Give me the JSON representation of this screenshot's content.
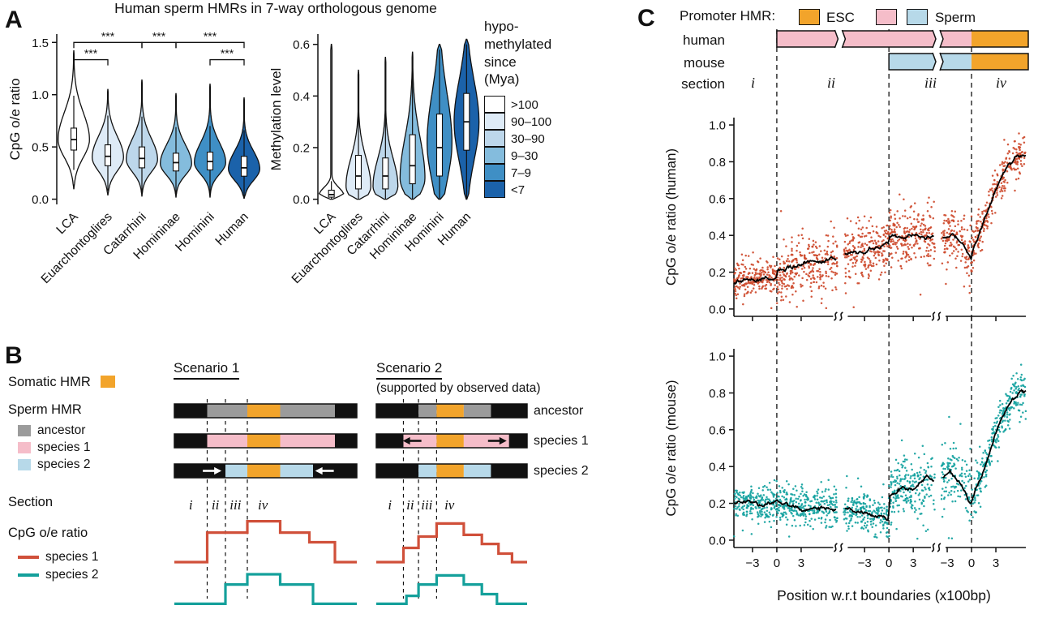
{
  "colors": {
    "orange": "#F2A42B",
    "pink": "#F5BDC9",
    "blue": "#B7D9E9",
    "gray": "#9B9B9B",
    "red": "#D0503A",
    "teal": "#14A09B",
    "black": "#111111"
  },
  "panelA": {
    "label": "A",
    "title": "Human sperm HMRs in 7-way orthologous genome",
    "categories": [
      "LCA",
      "Euarchontoglires",
      "Catarrhini",
      "Homininae",
      "Hominini",
      "Human"
    ],
    "violin_fills": [
      "#FFFFFF",
      "#DEEBF7",
      "#BDD7EB",
      "#84BCDD",
      "#3F8FC5",
      "#1B62AA"
    ],
    "legend": {
      "title": "hypo-\nmethylated\nsince\n(Mya)",
      "entries": [
        {
          "label": ">100",
          "color": "#FFFFFF"
        },
        {
          "label": "90–100",
          "color": "#DEEBF7"
        },
        {
          "label": "30–90",
          "color": "#BDD7EB"
        },
        {
          "label": "9–30",
          "color": "#84BCDD"
        },
        {
          "label": "7–9",
          "color": "#3F8FC5"
        },
        {
          "label": "<7",
          "color": "#1B62AA"
        }
      ]
    }
  },
  "panelB": {
    "label": "B",
    "somatic_label": "Somatic HMR",
    "sperm_label": "Sperm HMR",
    "section_label": "Section",
    "cpg_label": "CpG o/e ratio",
    "row_labels": [
      "ancestor",
      "species 1",
      "species 2"
    ],
    "hmr_legend": [
      {
        "label": "ancestor",
        "key": "gray"
      },
      {
        "label": "species 1",
        "key": "pink"
      },
      {
        "label": "species 2",
        "key": "blue"
      }
    ],
    "line_legend": [
      {
        "label": "species 1",
        "key": "red"
      },
      {
        "label": "species 2",
        "key": "teal"
      }
    ],
    "dashes": [
      0.18,
      0.28,
      0.4
    ],
    "sections": [
      {
        "label": "i",
        "f": 0.09
      },
      {
        "label": "ii",
        "f": 0.225
      },
      {
        "label": "iii",
        "f": 0.335
      },
      {
        "label": "iv",
        "f": 0.485
      }
    ],
    "scenario1": {
      "title": "Scenario 1",
      "bars": [
        {
          "segs": [
            [
              0,
              0.18,
              "black"
            ],
            [
              0.18,
              0.4,
              "gray"
            ],
            [
              0.4,
              0.58,
              "orange"
            ],
            [
              0.58,
              0.88,
              "gray"
            ],
            [
              0.88,
              1,
              "black"
            ]
          ]
        },
        {
          "segs": [
            [
              0,
              0.18,
              "black"
            ],
            [
              0.18,
              0.4,
              "pink"
            ],
            [
              0.4,
              0.58,
              "orange"
            ],
            [
              0.58,
              0.88,
              "pink"
            ],
            [
              0.88,
              1,
              "black"
            ]
          ]
        },
        {
          "segs": [
            [
              0,
              0.28,
              "black"
            ],
            [
              0.28,
              0.4,
              "blue"
            ],
            [
              0.4,
              0.58,
              "orange"
            ],
            [
              0.58,
              0.76,
              "blue"
            ],
            [
              0.76,
              1,
              "black"
            ]
          ],
          "arrows": [
            {
              "f": 0.205,
              "dir": 1,
              "color": "#FFFFFF"
            },
            {
              "f": 0.825,
              "dir": -1,
              "color": "#FFFFFF"
            }
          ]
        }
      ],
      "red_steps": [
        [
          0,
          0.18,
          0.1
        ],
        [
          0.18,
          0.4,
          0.62
        ],
        [
          0.4,
          0.58,
          0.82
        ],
        [
          0.58,
          0.74,
          0.62
        ],
        [
          0.74,
          0.88,
          0.45
        ],
        [
          0.88,
          1,
          0.1
        ]
      ],
      "teal_steps": [
        [
          0,
          0.28,
          0.08
        ],
        [
          0.28,
          0.4,
          0.42
        ],
        [
          0.4,
          0.58,
          0.6
        ],
        [
          0.58,
          0.76,
          0.42
        ],
        [
          0.76,
          1,
          0.08
        ]
      ]
    },
    "scenario2": {
      "title": "Scenario 2",
      "subtitle": "(supported by observed data)",
      "bars": [
        {
          "segs": [
            [
              0,
              0.28,
              "black"
            ],
            [
              0.28,
              0.4,
              "gray"
            ],
            [
              0.4,
              0.58,
              "orange"
            ],
            [
              0.58,
              0.76,
              "gray"
            ],
            [
              0.76,
              1,
              "black"
            ]
          ]
        },
        {
          "segs": [
            [
              0,
              0.18,
              "black"
            ],
            [
              0.18,
              0.4,
              "pink"
            ],
            [
              0.4,
              0.58,
              "orange"
            ],
            [
              0.58,
              0.88,
              "pink"
            ],
            [
              0.88,
              1,
              "black"
            ]
          ],
          "arrows": [
            {
              "f": 0.24,
              "dir": -1,
              "color": "#111111"
            },
            {
              "f": 0.8,
              "dir": 1,
              "color": "#111111"
            }
          ]
        },
        {
          "segs": [
            [
              0,
              0.28,
              "black"
            ],
            [
              0.28,
              0.4,
              "blue"
            ],
            [
              0.4,
              0.58,
              "orange"
            ],
            [
              0.58,
              0.76,
              "blue"
            ],
            [
              0.76,
              1,
              "black"
            ]
          ]
        }
      ],
      "red_steps": [
        [
          0,
          0.18,
          0.1
        ],
        [
          0.18,
          0.28,
          0.35
        ],
        [
          0.28,
          0.4,
          0.55
        ],
        [
          0.4,
          0.58,
          0.78
        ],
        [
          0.58,
          0.7,
          0.58
        ],
        [
          0.7,
          0.81,
          0.42
        ],
        [
          0.81,
          0.9,
          0.25
        ],
        [
          0.9,
          1,
          0.1
        ]
      ],
      "teal_steps": [
        [
          0,
          0.2,
          0.08
        ],
        [
          0.2,
          0.28,
          0.22
        ],
        [
          0.28,
          0.4,
          0.42
        ],
        [
          0.4,
          0.58,
          0.58
        ],
        [
          0.58,
          0.7,
          0.42
        ],
        [
          0.7,
          0.8,
          0.25
        ],
        [
          0.8,
          1,
          0.08
        ]
      ]
    }
  },
  "panelC": {
    "label": "C",
    "legend": {
      "title": "Promoter HMR:",
      "esc": "ESC",
      "sperm": "Sperm"
    },
    "row_labels": [
      "human",
      "mouse",
      "section"
    ],
    "sections": [
      "i",
      "ii",
      "iii",
      "iv"
    ],
    "xlabel": "Position w.r.t boundaries (x100bp)"
  },
  "chart_data": [
    {
      "id": "violin-cpg",
      "type": "violin",
      "title": "Human sperm HMRs in 7-way orthologous genome",
      "ylabel": "CpG o/e ratio",
      "ylim": [
        -0.05,
        1.58
      ],
      "yticks": [
        0,
        0.5,
        1.0,
        1.5
      ],
      "categories": [
        "LCA",
        "Euarchontoglires",
        "Catarrhini",
        "Homininae",
        "Hominini",
        "Human"
      ],
      "violins": [
        {
          "min": 0.1,
          "max": 1.42,
          "mode": 0.57,
          "bwL": 0.17,
          "bwH": 0.26,
          "tail": 0.02,
          "q1": 0.47,
          "med": 0.57,
          "q3": 0.68,
          "wlo": 0.28,
          "whi": 0.99
        },
        {
          "min": 0.04,
          "max": 1.05,
          "mode": 0.4,
          "bwL": 0.13,
          "bwH": 0.2,
          "tail": 0.02,
          "q1": 0.32,
          "med": 0.41,
          "q3": 0.52,
          "wlo": 0.08,
          "whi": 0.8
        },
        {
          "min": 0.03,
          "max": 1.14,
          "mode": 0.38,
          "bwL": 0.12,
          "bwH": 0.2,
          "tail": 0.02,
          "q1": 0.3,
          "med": 0.39,
          "q3": 0.5,
          "wlo": 0.05,
          "whi": 0.79
        },
        {
          "min": 0.02,
          "max": 1.01,
          "mode": 0.34,
          "bwL": 0.11,
          "bwH": 0.18,
          "tail": 0.02,
          "q1": 0.27,
          "med": 0.35,
          "q3": 0.44,
          "wlo": 0.04,
          "whi": 0.69
        },
        {
          "min": 0.02,
          "max": 1.1,
          "mode": 0.35,
          "bwL": 0.11,
          "bwH": 0.19,
          "tail": 0.02,
          "q1": 0.28,
          "med": 0.36,
          "q3": 0.45,
          "wlo": 0.04,
          "whi": 0.7
        },
        {
          "min": 0.01,
          "max": 0.97,
          "mode": 0.29,
          "bwL": 0.11,
          "bwH": 0.17,
          "tail": 0.02,
          "q1": 0.22,
          "med": 0.3,
          "q3": 0.41,
          "wlo": 0.02,
          "whi": 0.66
        }
      ],
      "brackets": [
        {
          "a": 0,
          "b": 2,
          "y": 1.5,
          "label": "***"
        },
        {
          "a": 0,
          "b": 1,
          "y": 1.335,
          "label": "***"
        },
        {
          "a": 2,
          "b": 3,
          "y": 1.5,
          "label": "***"
        },
        {
          "a": 3,
          "b": 5,
          "y": 1.5,
          "label": "***"
        },
        {
          "a": 4,
          "b": 5,
          "y": 1.335,
          "label": "***"
        }
      ]
    },
    {
      "id": "violin-meth",
      "type": "violin",
      "ylabel": "Methylation level",
      "ylim": [
        -0.02,
        0.64
      ],
      "yticks": [
        0,
        0.2,
        0.4,
        0.6
      ],
      "categories": [
        "LCA",
        "Euarchontoglires",
        "Catarrhini",
        "Homininae",
        "Hominini",
        "Human"
      ],
      "violins": [
        {
          "min": 0,
          "max": 0.6,
          "mode": 0.015,
          "bwL": 0.012,
          "bwH": 0.03,
          "tail": 0.05,
          "q1": 0.008,
          "med": 0.018,
          "q3": 0.035,
          "wlo": 0.0,
          "whi": 0.07
        },
        {
          "min": 0,
          "max": 0.5,
          "mode": 0.05,
          "bwL": 0.045,
          "bwH": 0.11,
          "tail": 0.03,
          "q1": 0.04,
          "med": 0.09,
          "q3": 0.17,
          "wlo": 0.0,
          "whi": 0.36
        },
        {
          "min": 0,
          "max": 0.55,
          "mode": 0.05,
          "bwL": 0.045,
          "bwH": 0.11,
          "tail": 0.03,
          "q1": 0.04,
          "med": 0.09,
          "q3": 0.16,
          "wlo": 0.0,
          "whi": 0.34
        },
        {
          "min": 0,
          "max": 0.57,
          "mode": 0.08,
          "bwL": 0.06,
          "bwH": 0.16,
          "tail": 0.03,
          "q1": 0.06,
          "med": 0.13,
          "q3": 0.25,
          "wlo": 0.0,
          "whi": 0.52
        },
        {
          "min": 0,
          "max": 0.6,
          "mode": 0.22,
          "bwL": 0.15,
          "bwH": 0.19,
          "tail": 0.04,
          "q1": 0.09,
          "med": 0.2,
          "q3": 0.33,
          "wlo": 0.0,
          "whi": 0.58
        },
        {
          "min": 0,
          "max": 0.62,
          "mode": 0.3,
          "bwL": 0.15,
          "bwH": 0.16,
          "tail": 0.04,
          "q1": 0.19,
          "med": 0.3,
          "q3": 0.41,
          "wlo": 0.0,
          "whi": 0.6
        }
      ]
    },
    {
      "id": "scatter-human",
      "type": "scatter",
      "ylabel": "CpG o/e ratio (human)",
      "color": "#CE4B2E",
      "ylim": [
        0,
        1
      ],
      "yticks": [
        0,
        0.2,
        0.4,
        0.6,
        0.8,
        1.0
      ],
      "boundaries": [
        0.147,
        0.531,
        0.814
      ],
      "breaks": [
        0.365,
        0.7
      ],
      "xticks": [
        "−3",
        "0",
        "3"
      ],
      "xlabel": "Position w.r.t boundaries (x100bp)",
      "n": 1400,
      "seed": 7,
      "noise_sd": [
        [
          0.147,
          0.042
        ],
        [
          0.531,
          0.08
        ],
        [
          0.814,
          0.075
        ],
        [
          1.01,
          0.055
        ]
      ],
      "trend": [
        [
          0,
          0.14
        ],
        [
          0.04,
          0.17
        ],
        [
          0.1,
          0.16
        ],
        [
          0.145,
          0.17
        ],
        [
          0.15,
          0.21
        ],
        [
          0.2,
          0.23
        ],
        [
          0.25,
          0.26
        ],
        [
          0.3,
          0.24
        ],
        [
          0.34,
          0.28
        ],
        [
          0.365,
          0.26
        ],
        [
          0.38,
          0.3
        ],
        [
          0.44,
          0.31
        ],
        [
          0.5,
          0.33
        ],
        [
          0.528,
          0.36
        ],
        [
          0.535,
          0.4
        ],
        [
          0.58,
          0.39
        ],
        [
          0.63,
          0.41
        ],
        [
          0.67,
          0.38
        ],
        [
          0.695,
          0.41
        ],
        [
          0.705,
          0.39
        ],
        [
          0.75,
          0.4
        ],
        [
          0.79,
          0.34
        ],
        [
          0.812,
          0.28
        ],
        [
          0.82,
          0.33
        ],
        [
          0.85,
          0.45
        ],
        [
          0.88,
          0.58
        ],
        [
          0.91,
          0.7
        ],
        [
          0.94,
          0.78
        ],
        [
          0.97,
          0.83
        ],
        [
          1,
          0.85
        ]
      ]
    },
    {
      "id": "scatter-mouse",
      "type": "scatter",
      "ylabel": "CpG o/e ratio (mouse)",
      "color": "#14A2A0",
      "ylim": [
        0,
        1
      ],
      "yticks": [
        0,
        0.2,
        0.4,
        0.6,
        0.8,
        1.0
      ],
      "boundaries": [
        0.147,
        0.531,
        0.814
      ],
      "breaks": [
        0.365,
        0.7
      ],
      "xticks": [
        "−3",
        "0",
        "3"
      ],
      "xlabel": "Position w.r.t boundaries (x100bp)",
      "n": 1400,
      "seed": 11,
      "noise_sd": [
        [
          0.147,
          0.05
        ],
        [
          0.531,
          0.052
        ],
        [
          0.814,
          0.085
        ],
        [
          1.01,
          0.06
        ]
      ],
      "trend": [
        [
          0,
          0.2
        ],
        [
          0.05,
          0.21
        ],
        [
          0.1,
          0.19
        ],
        [
          0.145,
          0.2
        ],
        [
          0.18,
          0.19
        ],
        [
          0.24,
          0.17
        ],
        [
          0.3,
          0.18
        ],
        [
          0.36,
          0.16
        ],
        [
          0.42,
          0.16
        ],
        [
          0.48,
          0.14
        ],
        [
          0.52,
          0.12
        ],
        [
          0.528,
          0.11
        ],
        [
          0.535,
          0.24
        ],
        [
          0.58,
          0.3
        ],
        [
          0.62,
          0.28
        ],
        [
          0.66,
          0.34
        ],
        [
          0.7,
          0.3
        ],
        [
          0.74,
          0.37
        ],
        [
          0.78,
          0.3
        ],
        [
          0.8,
          0.22
        ],
        [
          0.812,
          0.2
        ],
        [
          0.83,
          0.28
        ],
        [
          0.86,
          0.4
        ],
        [
          0.89,
          0.55
        ],
        [
          0.92,
          0.67
        ],
        [
          0.95,
          0.76
        ],
        [
          0.98,
          0.8
        ],
        [
          1,
          0.8
        ]
      ]
    }
  ]
}
